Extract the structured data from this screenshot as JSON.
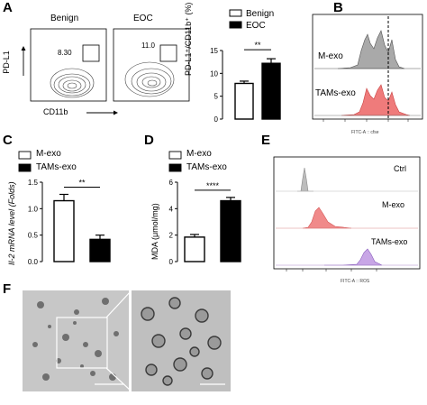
{
  "figure": {
    "panel_letters": [
      "A",
      "B",
      "C",
      "D",
      "E",
      "F"
    ]
  },
  "panelA": {
    "flow_titles": [
      "Benign",
      "EOC"
    ],
    "gate_values": [
      "8.30",
      "11.0"
    ],
    "y_axis": "PD-L1",
    "x_axis": "CD11b",
    "bar_ylabel": "PD-L1⁺/CD11b⁺ (%)",
    "legend": [
      "Benign",
      "EOC"
    ],
    "significance": "**",
    "chart_data": {
      "type": "bar",
      "categories": [
        "Benign",
        "EOC"
      ],
      "values": [
        7.8,
        12.2
      ],
      "errors": [
        0.5,
        1.0
      ],
      "ylim": [
        0,
        15
      ],
      "yticks": [
        0,
        5,
        10,
        15
      ],
      "colors": [
        "#ffffff",
        "#000000"
      ]
    }
  },
  "panelB": {
    "labels": [
      "M-exo",
      "TAMs-exo"
    ],
    "x_axis": "FITC-A :: cfse"
  },
  "panelC": {
    "legend": [
      "M-exo",
      "TAMs-exo"
    ],
    "ylabel": "Il-2 mRNA level (Folds)",
    "significance": "**",
    "chart_data": {
      "type": "bar",
      "categories": [
        "M-exo",
        "TAMs-exo"
      ],
      "values": [
        1.15,
        0.42
      ],
      "errors": [
        0.12,
        0.08
      ],
      "ylim": [
        0,
        1.5
      ],
      "yticks": [
        "0.0",
        "0.5",
        "1.0",
        "1.5"
      ],
      "colors": [
        "#ffffff",
        "#000000"
      ]
    }
  },
  "panelD": {
    "legend": [
      "M-exo",
      "TAMs-exo"
    ],
    "ylabel": "MDA (μmol/mg)",
    "significance": "****",
    "chart_data": {
      "type": "bar",
      "categories": [
        "M-exo",
        "TAMs-exo"
      ],
      "values": [
        1.85,
        4.6
      ],
      "errors": [
        0.2,
        0.25
      ],
      "ylim": [
        0,
        6
      ],
      "yticks": [
        0,
        2,
        4,
        6
      ],
      "colors": [
        "#ffffff",
        "#000000"
      ]
    }
  },
  "panelE": {
    "labels": [
      "Ctrl",
      "M-exo",
      "TAMs-exo"
    ],
    "x_axis": "FITC-A :: ROS"
  }
}
